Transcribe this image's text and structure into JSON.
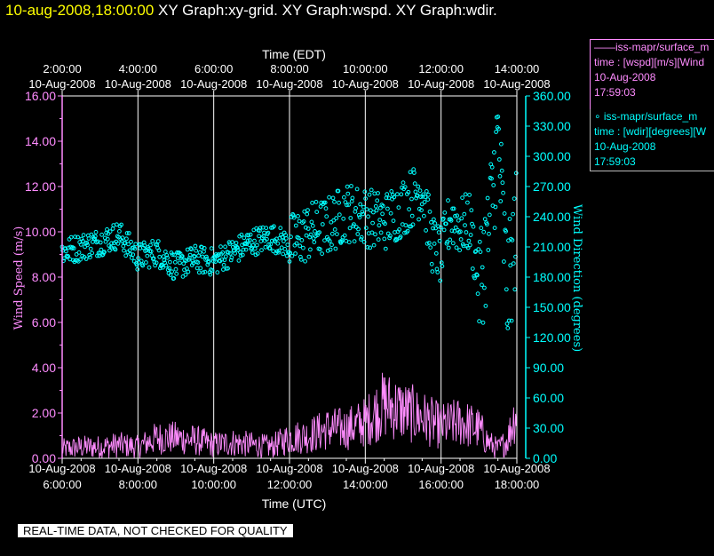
{
  "header": {
    "timestamp": "10-aug-2008,18:00:00",
    "graphs": "XY Graph:xy-grid.  XY Graph:wspd.  XY Graph:wdir."
  },
  "legend": {
    "series1": {
      "line1": "——iss-mapr/surface_m",
      "line2": "time : [wspd][m/s][Wind",
      "line3": "10-Aug-2008",
      "line4": "17:59:03"
    },
    "series2": {
      "line1": "∘ iss-mapr/surface_m",
      "line2": "time : [wdir][degrees][W",
      "line3": "10-Aug-2008",
      "line4": "17:59:03"
    }
  },
  "note": "REAL-TIME DATA, NOT CHECKED FOR QUALITY",
  "colors": {
    "wspd": "#ff8cff",
    "wdir": "#00ffff",
    "grid": "#ffffff",
    "axis_left": "#ff8cff",
    "axis_right": "#00ffff"
  },
  "chart_data": {
    "type": "line",
    "top_axis": {
      "label": "Time (EDT)",
      "ticks": [
        {
          "time": "2:00:00",
          "date": "10-Aug-2008"
        },
        {
          "time": "4:00:00",
          "date": "10-Aug-2008"
        },
        {
          "time": "6:00:00",
          "date": "10-Aug-2008"
        },
        {
          "time": "8:00:00",
          "date": "10-Aug-2008"
        },
        {
          "time": "10:00:00",
          "date": "10-Aug-2008"
        },
        {
          "time": "12:00:00",
          "date": "10-Aug-2008"
        },
        {
          "time": "14:00:00",
          "date": "10-Aug-2008"
        }
      ]
    },
    "bottom_axis": {
      "label": "Time (UTC)",
      "ticks": [
        {
          "date": "10-Aug-2008",
          "time": "6:00:00"
        },
        {
          "date": "10-Aug-2008",
          "time": "8:00:00"
        },
        {
          "date": "10-Aug-2008",
          "time": "10:00:00"
        },
        {
          "date": "10-Aug-2008",
          "time": "12:00:00"
        },
        {
          "date": "10-Aug-2008",
          "time": "14:00:00"
        },
        {
          "date": "10-Aug-2008",
          "time": "16:00:00"
        },
        {
          "date": "10-Aug-2008",
          "time": "18:00:00"
        }
      ],
      "xlim": [
        "2008-08-10T06:00:00Z",
        "2008-08-10T18:00:00Z"
      ]
    },
    "left_axis": {
      "label": "Wind Speed (m/s)",
      "ticks": [
        "0.00",
        "2.00",
        "4.00",
        "6.00",
        "8.00",
        "10.00",
        "12.00",
        "14.00",
        "16.00"
      ],
      "ylim": [
        0,
        16
      ]
    },
    "right_axis": {
      "label": "Wind Direction (degrees)",
      "ticks": [
        "0.00",
        "30.00",
        "60.00",
        "90.00",
        "120.00",
        "150.00",
        "180.00",
        "210.00",
        "240.00",
        "270.00",
        "300.00",
        "330.00",
        "360.00"
      ],
      "ylim": [
        0,
        360
      ]
    },
    "grid": "vertical",
    "series": [
      {
        "name": "wspd",
        "axis": "left",
        "style": "line",
        "x": [
          "06:00",
          "06:30",
          "07:00",
          "07:30",
          "08:00",
          "08:30",
          "09:00",
          "09:30",
          "10:00",
          "10:30",
          "11:00",
          "11:30",
          "12:00",
          "12:30",
          "13:00",
          "13:30",
          "14:00",
          "14:30",
          "15:00",
          "15:30",
          "16:00",
          "16:30",
          "17:00",
          "17:15",
          "17:30",
          "17:45",
          "18:00"
        ],
        "values": [
          0.4,
          0.5,
          0.5,
          0.6,
          0.5,
          0.9,
          0.9,
          0.8,
          0.6,
          0.7,
          0.6,
          0.5,
          0.9,
          1.0,
          1.3,
          1.3,
          1.6,
          2.4,
          2.1,
          1.8,
          1.4,
          1.6,
          1.3,
          0.7,
          0.4,
          0.8,
          2.2
        ]
      },
      {
        "name": "wdir",
        "axis": "right",
        "style": "scatter",
        "x": [
          "06:00",
          "06:30",
          "07:00",
          "07:30",
          "08:00",
          "08:30",
          "09:00",
          "09:30",
          "10:00",
          "10:30",
          "11:00",
          "11:30",
          "12:00",
          "12:30",
          "13:00",
          "13:30",
          "14:00",
          "14:30",
          "15:00",
          "15:15",
          "15:30",
          "15:45",
          "16:00",
          "16:15",
          "16:30",
          "16:45",
          "17:00",
          "17:15",
          "17:30",
          "17:45",
          "18:00"
        ],
        "values": [
          205,
          210,
          215,
          222,
          200,
          205,
          190,
          198,
          195,
          205,
          215,
          220,
          212,
          225,
          230,
          245,
          240,
          235,
          250,
          260,
          270,
          215,
          200,
          240,
          230,
          235,
          175,
          220,
          320,
          160,
          235
        ]
      }
    ]
  }
}
